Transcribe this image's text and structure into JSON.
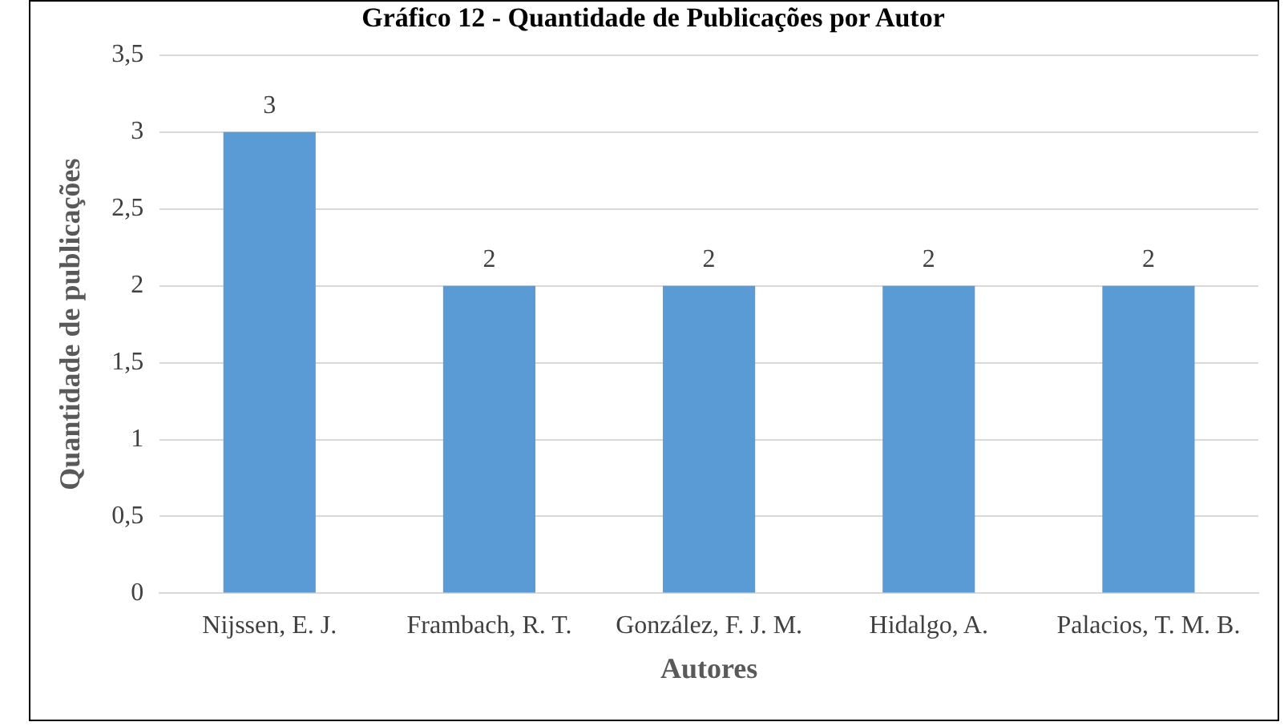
{
  "chart_data": {
    "type": "bar",
    "title": "Gráfico 12 - Quantidade de Publicações por Autor",
    "xlabel": "Autores",
    "ylabel": "Quantidade de publicações",
    "categories": [
      "Nijssen, E. J.",
      "Frambach, R. T.",
      "González, F. J. M.",
      "Hidalgo, A.",
      "Palacios, T. M. B."
    ],
    "values": [
      3,
      2,
      2,
      2,
      2
    ],
    "color": "#5b9bd5",
    "ylim": [
      0,
      3.5
    ],
    "yticks": [
      {
        "value": 0,
        "label": "0"
      },
      {
        "value": 0.5,
        "label": "0,5"
      },
      {
        "value": 1,
        "label": "1"
      },
      {
        "value": 1.5,
        "label": "1,5"
      },
      {
        "value": 2,
        "label": "2"
      },
      {
        "value": 2.5,
        "label": "2,5"
      },
      {
        "value": 3,
        "label": "3"
      },
      {
        "value": 3.5,
        "label": "3,5"
      }
    ],
    "grid": "y",
    "legend": false,
    "data_labels": true
  }
}
